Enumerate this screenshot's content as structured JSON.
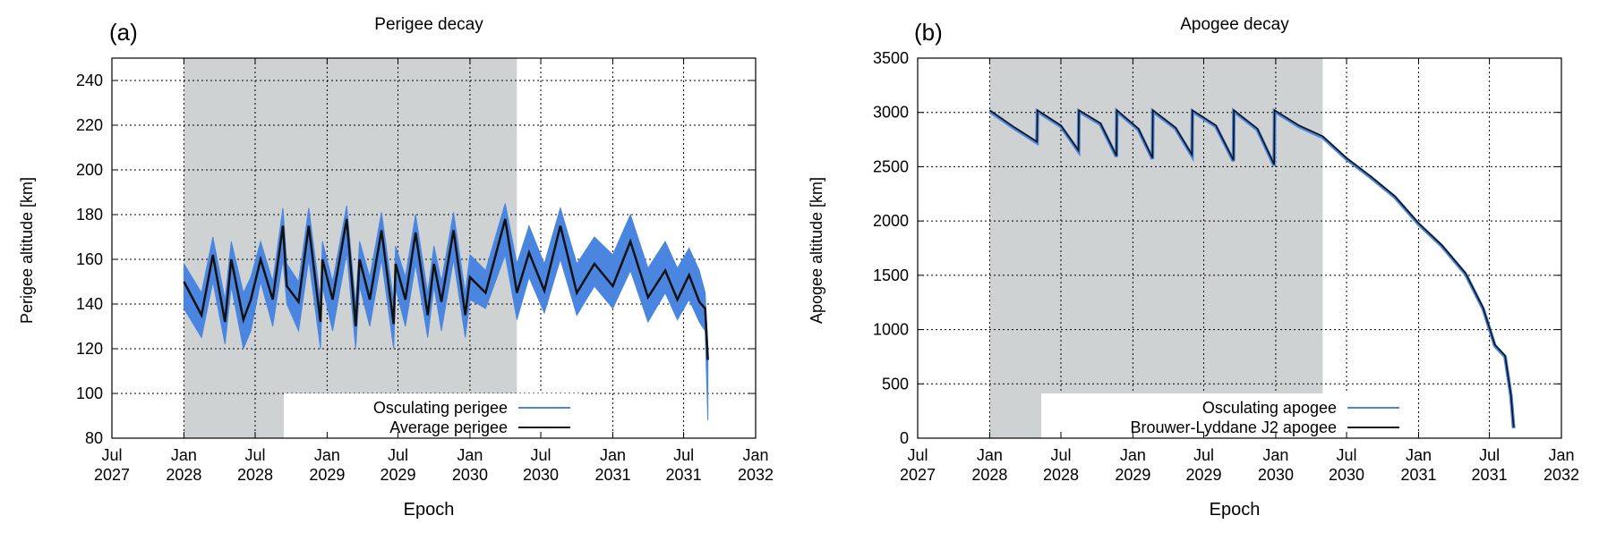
{
  "panels": [
    {
      "label": "(a)",
      "title": "Perigee decay",
      "xlabel": "Epoch",
      "ylabel": "Perigee altitude [km]"
    },
    {
      "label": "(b)",
      "title": "Apogee decay",
      "xlabel": "Epoch",
      "ylabel": "Apogee altitude [km]"
    }
  ],
  "colors": {
    "osculating": "#4a86e0",
    "average": "#111111",
    "shade": "#cfd2d3",
    "grid": "#000000"
  },
  "chart_data": [
    {
      "type": "line",
      "title": "Perigee decay",
      "xlabel": "Epoch",
      "ylabel": "Perigee altitude [km]",
      "x_ticks": [
        "Jul 2027",
        "Jan 2028",
        "Jul 2028",
        "Jan 2029",
        "Jul 2029",
        "Jan 2030",
        "Jul 2030",
        "Jan 2031",
        "Jul 2031",
        "Jan 2032"
      ],
      "xlim": [
        "2027-07-01",
        "2032-01-01"
      ],
      "ylim": [
        80,
        250
      ],
      "y_ticks": [
        80,
        100,
        120,
        140,
        160,
        180,
        200,
        220,
        240
      ],
      "shaded_interval": [
        "2028-01-01",
        "2030-05-01"
      ],
      "grid": true,
      "legend_position": "bottom-center",
      "legend": [
        "Osculating perigee",
        "Average perigee"
      ],
      "series": [
        {
          "name": "Average perigee",
          "x": [
            "2028-01-01",
            "2028-02-15",
            "2028-03-15",
            "2028-04-15",
            "2028-05-01",
            "2028-06-01",
            "2028-06-20",
            "2028-07-15",
            "2028-08-15",
            "2028-09-10",
            "2028-09-20",
            "2028-10-20",
            "2028-11-15",
            "2028-12-15",
            "2028-12-20",
            "2029-01-15",
            "2029-02-20",
            "2029-03-15",
            "2029-03-25",
            "2029-04-20",
            "2029-05-20",
            "2029-06-20",
            "2029-06-25",
            "2029-07-20",
            "2029-08-15",
            "2029-09-15",
            "2029-10-01",
            "2029-10-20",
            "2029-11-20",
            "2029-12-20",
            "2030-01-01",
            "2030-02-10",
            "2030-04-01",
            "2030-05-01",
            "2030-06-01",
            "2030-07-10",
            "2030-08-20",
            "2030-10-01",
            "2030-11-15",
            "2031-01-01",
            "2031-02-15",
            "2031-04-01",
            "2031-05-15",
            "2031-06-15",
            "2031-07-15",
            "2031-08-10",
            "2031-08-25",
            "2031-09-01"
          ],
          "values": [
            150,
            135,
            162,
            132,
            160,
            133,
            142,
            160,
            142,
            175,
            148,
            141,
            175,
            132,
            160,
            142,
            178,
            130,
            160,
            142,
            173,
            131,
            158,
            142,
            172,
            135,
            158,
            141,
            173,
            135,
            152,
            145,
            178,
            145,
            163,
            146,
            175,
            145,
            158,
            148,
            168,
            143,
            155,
            142,
            153,
            141,
            138,
            115
          ]
        },
        {
          "name": "Osculating perigee",
          "band_lower": [
            138,
            125,
            150,
            122,
            148,
            120,
            128,
            150,
            130,
            160,
            140,
            128,
            160,
            120,
            148,
            128,
            163,
            120,
            148,
            130,
            160,
            120,
            147,
            130,
            158,
            125,
            148,
            128,
            160,
            125,
            142,
            138,
            162,
            133,
            152,
            136,
            160,
            135,
            148,
            138,
            155,
            132,
            145,
            133,
            142,
            132,
            128,
            88
          ],
          "band_upper": [
            158,
            145,
            170,
            142,
            168,
            145,
            152,
            168,
            150,
            183,
            158,
            150,
            183,
            142,
            168,
            150,
            184,
            140,
            168,
            152,
            181,
            141,
            166,
            152,
            180,
            145,
            166,
            150,
            181,
            145,
            162,
            155,
            185,
            158,
            175,
            158,
            183,
            158,
            170,
            162,
            180,
            156,
            168,
            156,
            165,
            155,
            145,
            120
          ]
        }
      ]
    },
    {
      "type": "line",
      "title": "Apogee decay",
      "xlabel": "Epoch",
      "ylabel": "Apogee altitude [km]",
      "x_ticks": [
        "Jul 2027",
        "Jan 2028",
        "Jul 2028",
        "Jan 2029",
        "Jul 2029",
        "Jan 2030",
        "Jul 2030",
        "Jan 2031",
        "Jul 2031",
        "Jan 2032"
      ],
      "xlim": [
        "2027-07-01",
        "2032-01-01"
      ],
      "ylim": [
        0,
        3500
      ],
      "y_ticks": [
        0,
        500,
        1000,
        1500,
        2000,
        2500,
        3000,
        3500
      ],
      "shaded_interval": [
        "2028-01-01",
        "2030-05-01"
      ],
      "grid": true,
      "legend_position": "bottom-center",
      "legend": [
        "Osculating apogee",
        "Brouwer-Lyddane J2 apogee"
      ],
      "series": [
        {
          "name": "Brouwer-Lyddane J2 apogee",
          "x": [
            "2028-01-01",
            "2028-03-01",
            "2028-05-01",
            "2028-05-02",
            "2028-07-01",
            "2028-08-15",
            "2028-08-16",
            "2028-10-10",
            "2028-11-20",
            "2028-11-21",
            "2029-01-15",
            "2029-02-20",
            "2029-02-21",
            "2029-04-20",
            "2029-06-01",
            "2029-06-02",
            "2029-08-01",
            "2029-09-15",
            "2029-09-16",
            "2029-11-15",
            "2029-12-28",
            "2029-12-29",
            "2030-03-01",
            "2030-05-01",
            "2030-07-01",
            "2030-09-01",
            "2030-11-01",
            "2031-01-01",
            "2031-03-01",
            "2031-05-01",
            "2031-06-15",
            "2031-07-15",
            "2031-08-10",
            "2031-08-25",
            "2031-09-01"
          ],
          "values": [
            3020,
            2870,
            2730,
            3020,
            2880,
            2650,
            3020,
            2900,
            2600,
            3020,
            2850,
            2580,
            3020,
            2860,
            2610,
            3020,
            2880,
            2560,
            3020,
            2850,
            2520,
            3020,
            2880,
            2780,
            2580,
            2410,
            2230,
            1980,
            1780,
            1520,
            1200,
            860,
            760,
            400,
            100
          ]
        },
        {
          "name": "Osculating apogee",
          "offset": 30
        }
      ]
    }
  ]
}
